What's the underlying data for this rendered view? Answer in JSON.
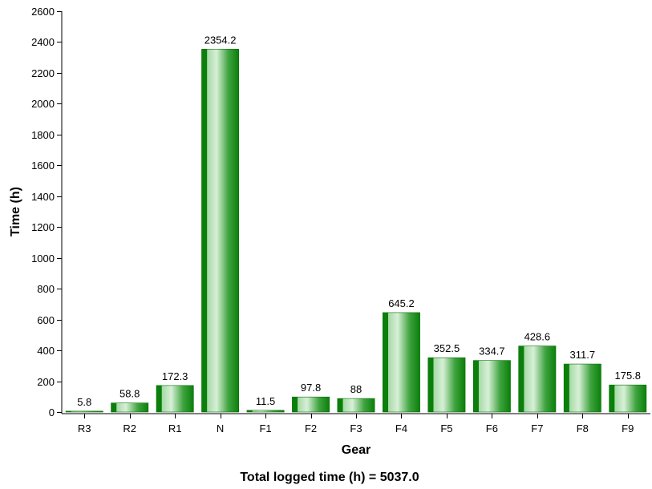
{
  "chart_data": {
    "type": "bar",
    "categories": [
      "R3",
      "R2",
      "R1",
      "N",
      "F1",
      "F2",
      "F3",
      "F4",
      "F5",
      "F6",
      "F7",
      "F8",
      "F9"
    ],
    "values": [
      5.8,
      58.8,
      172.3,
      2354.2,
      11.5,
      97.8,
      88,
      645.2,
      352.5,
      334.7,
      428.6,
      311.7,
      175.8
    ],
    "value_labels": [
      "5.8",
      "58.8",
      "172.3",
      "2354.2",
      "11.5",
      "97.8",
      "88",
      "645.2",
      "352.5",
      "334.7",
      "428.6",
      "311.7",
      "175.8"
    ],
    "xlabel": "Gear",
    "ylabel": "Time (h)",
    "ylim": [
      0,
      2600
    ],
    "y_ticks": [
      0,
      200,
      400,
      600,
      800,
      1000,
      1200,
      1400,
      1600,
      1800,
      2000,
      2200,
      2400,
      2600
    ],
    "grid": false,
    "legend": "none",
    "footer": "Total logged time (h) = 5037.0",
    "colors": {
      "bar_dark": "#007a00",
      "bar_light": "#bfe6bf",
      "bar_mid": "#2f9a2f"
    }
  }
}
